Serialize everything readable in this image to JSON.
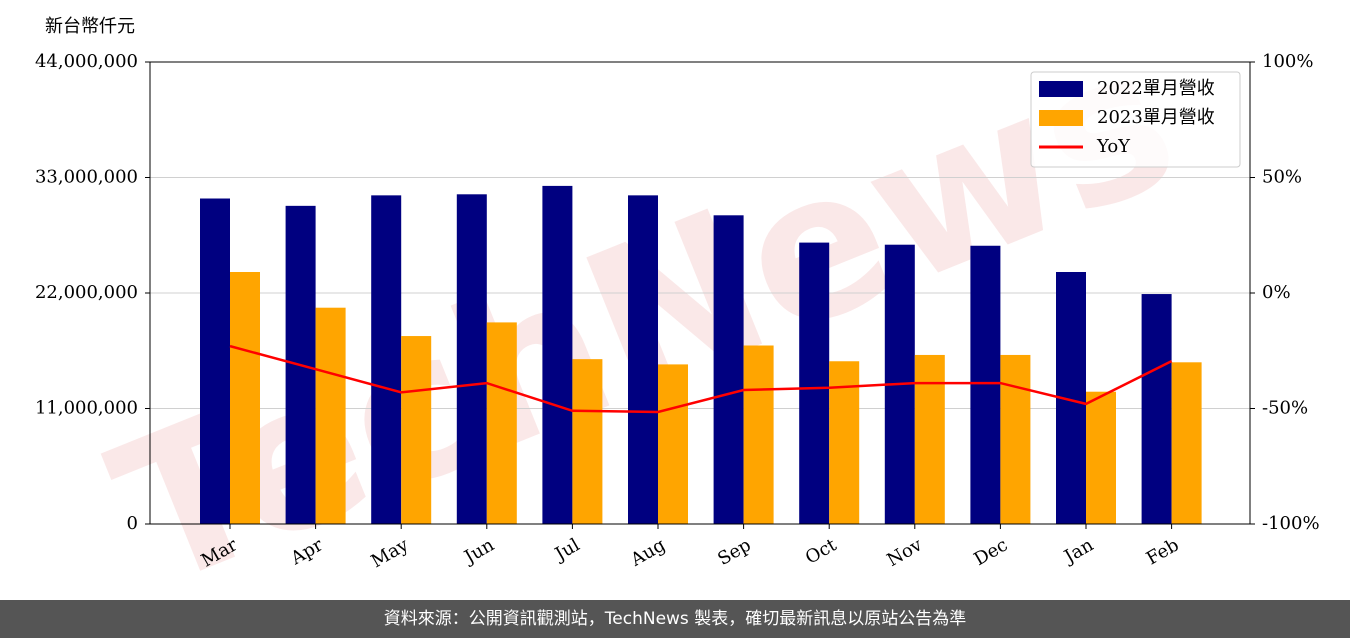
{
  "chart_data": {
    "type": "bar",
    "unit_label": "新台幣仟元",
    "watermark": "TechNews",
    "source_note": "資料來源：公開資訊觀測站，TechNews 製表，確切最新訊息以原站公告為準",
    "categories": [
      "Mar",
      "Apr",
      "May",
      "Jun",
      "Jul",
      "Aug",
      "Sep",
      "Oct",
      "Nov",
      "Dec",
      "Jan",
      "Feb"
    ],
    "series": [
      {
        "name": "2022單月營收",
        "color": "#000080",
        "values": [
          31000000,
          30300000,
          31300000,
          31400000,
          32200000,
          31300000,
          29400000,
          26800000,
          26600000,
          26500000,
          24000000,
          21900000
        ]
      },
      {
        "name": "2023單月營收",
        "color": "#ffa500",
        "values": [
          24000000,
          20600000,
          17900000,
          19200000,
          15700000,
          15200000,
          17000000,
          15500000,
          16100000,
          16100000,
          12600000,
          15400000
        ]
      },
      {
        "name": "YoY",
        "color": "#ff0000",
        "type": "line",
        "axis": "y2",
        "values": [
          -23,
          -33,
          -43,
          -39,
          -51,
          -51.5,
          -42,
          -41,
          -39,
          -39,
          -48,
          -29.5
        ]
      }
    ],
    "ylim": [
      0,
      44000000
    ],
    "yticks": [
      0,
      {
        "value": 11000000,
        "label": "11,000,000"
      },
      {
        "value": 22000000,
        "label": "22,000,000"
      },
      {
        "value": 33000000,
        "label": "33,000,000"
      },
      {
        "value": 44000000,
        "label": "44,000,000"
      }
    ],
    "y2lim": [
      -100,
      100
    ],
    "y2ticks": [
      {
        "value": -100,
        "label": "-100%"
      },
      {
        "value": -50,
        "label": "-50%"
      },
      {
        "value": 0,
        "label": "0%"
      },
      {
        "value": 50,
        "label": "50%"
      },
      {
        "value": 100,
        "label": "100%"
      }
    ],
    "grid": true,
    "legend": "upper right"
  }
}
